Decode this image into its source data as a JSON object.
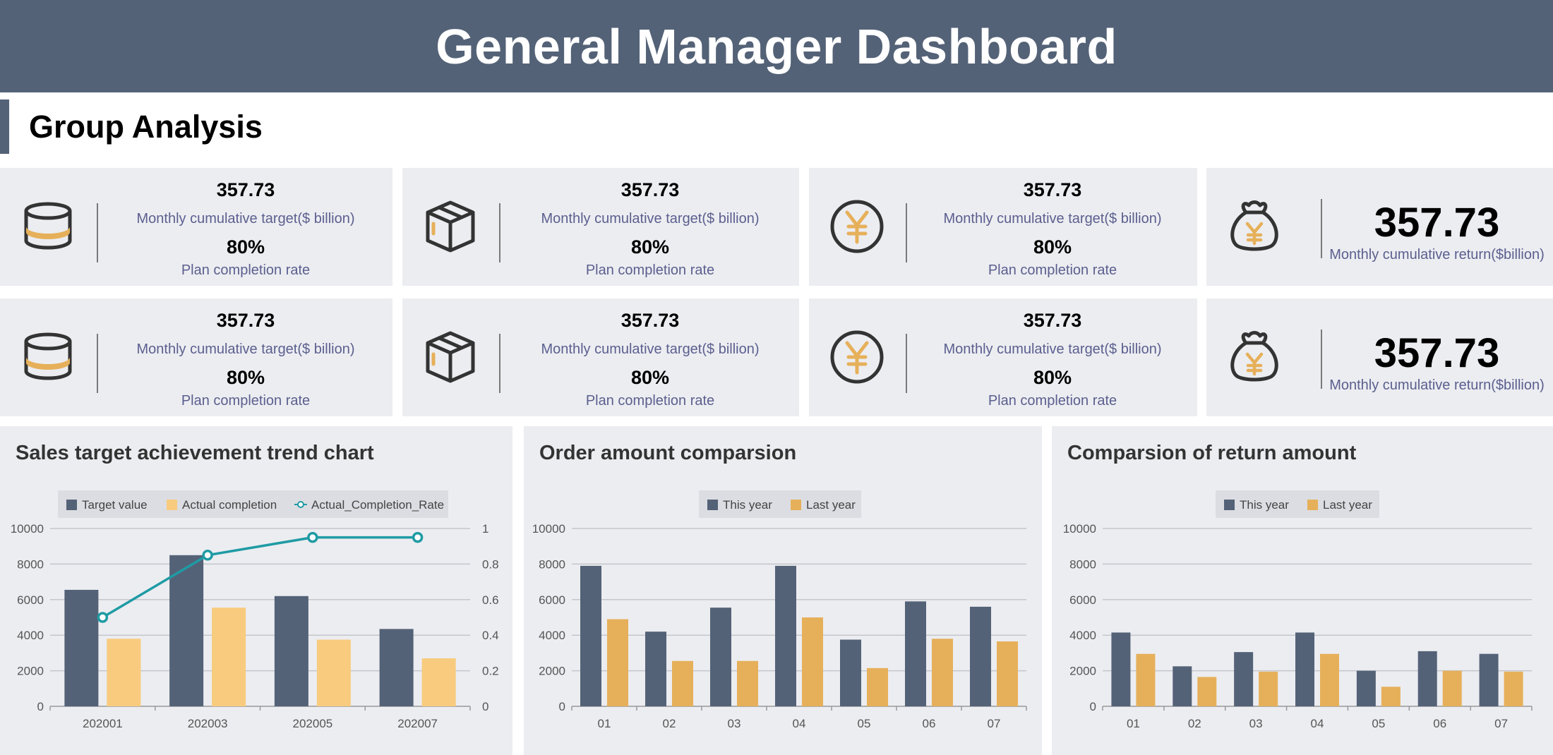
{
  "header": {
    "title": "General Manager Dashboard"
  },
  "section": {
    "title": "Group Analysis"
  },
  "colors": {
    "slate": "#546277",
    "gold": "#e6b05a",
    "lightgold": "#f8cb7e",
    "teal": "#1f9ba4",
    "panel": "#ecedf1"
  },
  "kpi_rows": [
    {
      "cards": [
        {
          "icon": "database-icon",
          "value": "357.73",
          "label": "Monthly cumulative target($ billion)",
          "rate": "80%",
          "rate_label": "Plan completion rate"
        },
        {
          "icon": "box-icon",
          "value": "357.73",
          "label": "Monthly cumulative target($ billion)",
          "rate": "80%",
          "rate_label": "Plan completion rate"
        },
        {
          "icon": "yen-coin-icon",
          "value": "357.73",
          "label": "Monthly cumulative target($ billion)",
          "rate": "80%",
          "rate_label": "Plan completion rate"
        },
        {
          "icon": "money-bag-icon",
          "value": "357.73",
          "label": "Monthly cumulative return($billion)"
        }
      ]
    },
    {
      "cards": [
        {
          "icon": "database-icon",
          "value": "357.73",
          "label": "Monthly cumulative target($ billion)",
          "rate": "80%",
          "rate_label": "Plan completion rate"
        },
        {
          "icon": "box-icon",
          "value": "357.73",
          "label": "Monthly cumulative target($ billion)",
          "rate": "80%",
          "rate_label": "Plan completion rate"
        },
        {
          "icon": "yen-coin-icon",
          "value": "357.73",
          "label": "Monthly cumulative target($ billion)",
          "rate": "80%",
          "rate_label": "Plan completion rate"
        },
        {
          "icon": "money-bag-icon",
          "value": "357.73",
          "label": "Monthly cumulative return($billion)"
        }
      ]
    }
  ],
  "chart_data": [
    {
      "type": "bar",
      "title": "Sales target achievement trend chart",
      "categories": [
        "202001",
        "202003",
        "202005",
        "202007"
      ],
      "series": [
        {
          "name": "Target value",
          "kind": "bar",
          "values": [
            6550,
            8500,
            6200,
            4350
          ]
        },
        {
          "name": "Actual completion",
          "kind": "bar",
          "values": [
            3800,
            5550,
            3750,
            2700
          ]
        },
        {
          "name": "Actual_Completion_Rate",
          "kind": "line",
          "axis": "right",
          "values": [
            0.5,
            0.85,
            0.95,
            0.95
          ]
        }
      ],
      "ylim": [
        0,
        10000
      ],
      "yticks": [
        "0",
        "2000",
        "4000",
        "6000",
        "8000",
        "10000"
      ],
      "y2lim": [
        0,
        1
      ],
      "y2ticks": [
        "0",
        "0.2",
        "0.4",
        "0.6",
        "0.8",
        "1"
      ],
      "legend": "top-center"
    },
    {
      "type": "bar",
      "title": "Order amount comparsion",
      "categories": [
        "01",
        "02",
        "03",
        "04",
        "05",
        "06",
        "07"
      ],
      "series": [
        {
          "name": "This year",
          "kind": "bar",
          "values": [
            7900,
            4200,
            5550,
            7900,
            3750,
            5900,
            5600
          ]
        },
        {
          "name": "Last year",
          "kind": "bar",
          "values": [
            4900,
            2550,
            2550,
            5000,
            2150,
            3800,
            3650
          ]
        }
      ],
      "ylim": [
        0,
        10000
      ],
      "yticks": [
        "0",
        "2000",
        "4000",
        "6000",
        "8000",
        "10000"
      ],
      "legend": "top-center"
    },
    {
      "type": "bar",
      "title": "Comparsion of return amount",
      "categories": [
        "01",
        "02",
        "03",
        "04",
        "05",
        "06",
        "07"
      ],
      "series": [
        {
          "name": "This year",
          "kind": "bar",
          "values": [
            4150,
            2250,
            3050,
            4150,
            2000,
            3100,
            2950
          ]
        },
        {
          "name": "Last year",
          "kind": "bar",
          "values": [
            2950,
            1650,
            1950,
            2950,
            1100,
            2000,
            1950
          ]
        }
      ],
      "ylim": [
        0,
        10000
      ],
      "yticks": [
        "0",
        "2000",
        "4000",
        "6000",
        "8000",
        "10000"
      ],
      "legend": "top-center"
    }
  ]
}
